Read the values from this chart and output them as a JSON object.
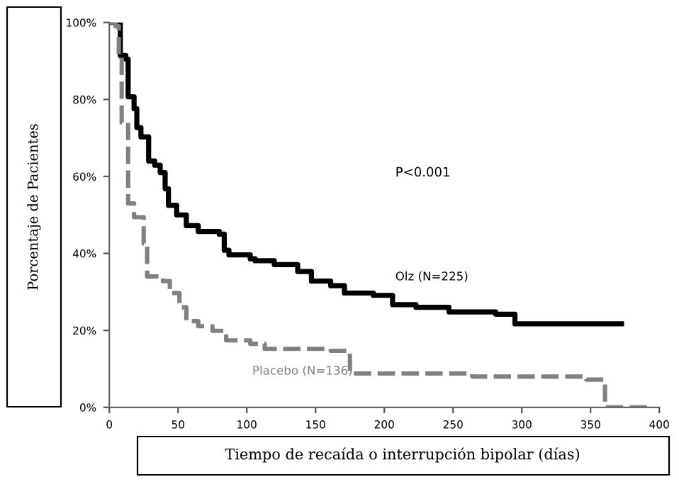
{
  "chart_data": {
    "type": "step",
    "xlabel": "Tiempo de recaída o interrupción bipolar (días)",
    "ylabel": "Porcentaje de Pacientes",
    "annotations": [
      "P<0.001"
    ],
    "xlim": [
      0,
      400
    ],
    "xticks": [
      0,
      50,
      100,
      150,
      200,
      250,
      300,
      350,
      400
    ],
    "ylim": [
      0,
      100
    ],
    "yticks": [
      {
        "value": 0,
        "label": "0%"
      },
      {
        "value": 20,
        "label": "20%"
      },
      {
        "value": 40,
        "label": "40%"
      },
      {
        "value": 60,
        "label": "60%"
      },
      {
        "value": 80,
        "label": "80%"
      },
      {
        "value": 100,
        "label": "100%"
      }
    ],
    "grid": false,
    "legend": false,
    "series": [
      {
        "name": "Olz (N=225)",
        "color": "#000000",
        "line_style": "solid",
        "x": [
          0,
          5.5,
          8,
          12,
          13.7,
          18,
          20,
          23,
          28.6,
          33,
          37,
          40.6,
          43,
          49,
          56,
          64.7,
          80,
          83.6,
          87,
          102.5,
          106,
          120,
          137,
          147,
          161,
          171,
          192,
          206,
          223,
          247,
          281,
          295,
          372.5
        ],
        "values": [
          100,
          99.7,
          91.4,
          90.5,
          80.7,
          77.6,
          72.7,
          70.3,
          64,
          62.9,
          61,
          56.8,
          52.5,
          50,
          47.2,
          45.7,
          45,
          40.8,
          39.6,
          38.6,
          38.1,
          37.1,
          35.3,
          32.8,
          31.6,
          29.7,
          29.1,
          26.7,
          26,
          24.8,
          24.2,
          21.7,
          21.7
        ]
      },
      {
        "name": "Placebo (N=136)",
        "color": "#808080",
        "line_style": "dashed",
        "x": [
          0,
          4.5,
          6.9,
          9,
          13.7,
          18,
          25,
          27.5,
          39,
          44,
          51,
          56,
          64.7,
          75,
          85,
          102.5,
          113,
          161,
          175,
          264,
          347,
          360.5,
          391
        ],
        "values": [
          100,
          99,
          91,
          74,
          53,
          49.4,
          42.6,
          34,
          32.8,
          29.7,
          26,
          22.4,
          21.1,
          19.9,
          17.4,
          16.5,
          15.2,
          14.7,
          8.8,
          8,
          7.2,
          0,
          0
        ]
      }
    ]
  }
}
